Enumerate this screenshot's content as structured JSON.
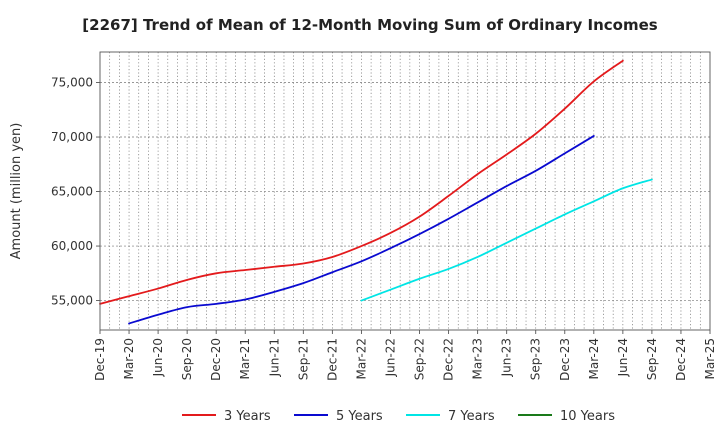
{
  "chart_data": {
    "type": "line",
    "title": "[2267]  Trend of Mean of 12-Month Moving Sum of Ordinary Incomes",
    "xlabel": "",
    "ylabel": "Amount (million yen)",
    "x_ticks": [
      "Dec-19",
      "Mar-20",
      "Jun-20",
      "Sep-20",
      "Dec-20",
      "Mar-21",
      "Jun-21",
      "Sep-21",
      "Dec-21",
      "Mar-22",
      "Jun-22",
      "Sep-22",
      "Dec-22",
      "Mar-23",
      "Jun-23",
      "Sep-23",
      "Dec-23",
      "Mar-24",
      "Jun-24",
      "Sep-24",
      "Dec-24",
      "Mar-25"
    ],
    "y_ticks": [
      55000,
      60000,
      65000,
      70000,
      75000
    ],
    "y_tick_labels": [
      "55,000",
      "60,000",
      "65,000",
      "70,000",
      "75,000"
    ],
    "ylim": [
      52300,
      77800
    ],
    "grid": true,
    "legend_position": "bottom",
    "series": [
      {
        "name": "3 Years",
        "color": "#e31a1c",
        "start_index": 0,
        "values": [
          54700,
          55400,
          56100,
          56900,
          57500,
          57800,
          58100,
          58400,
          59000,
          60000,
          61200,
          62700,
          64600,
          66600,
          68400,
          70300,
          72600,
          75100,
          77000
        ]
      },
      {
        "name": "5 Years",
        "color": "#0a0ad0",
        "start_index": 1,
        "values": [
          52900,
          53700,
          54400,
          54700,
          55100,
          55800,
          56600,
          57600,
          58600,
          59800,
          61100,
          62500,
          64000,
          65500,
          66900,
          68500,
          70100
        ]
      },
      {
        "name": "7 Years",
        "color": "#00e5e5",
        "start_index": 9,
        "values": [
          55000,
          56000,
          57000,
          57900,
          59000,
          60300,
          61600,
          62900,
          64100,
          65300,
          66100
        ]
      },
      {
        "name": "10 Years",
        "color": "#1a7a1a",
        "start_index": 0,
        "values": []
      }
    ]
  }
}
